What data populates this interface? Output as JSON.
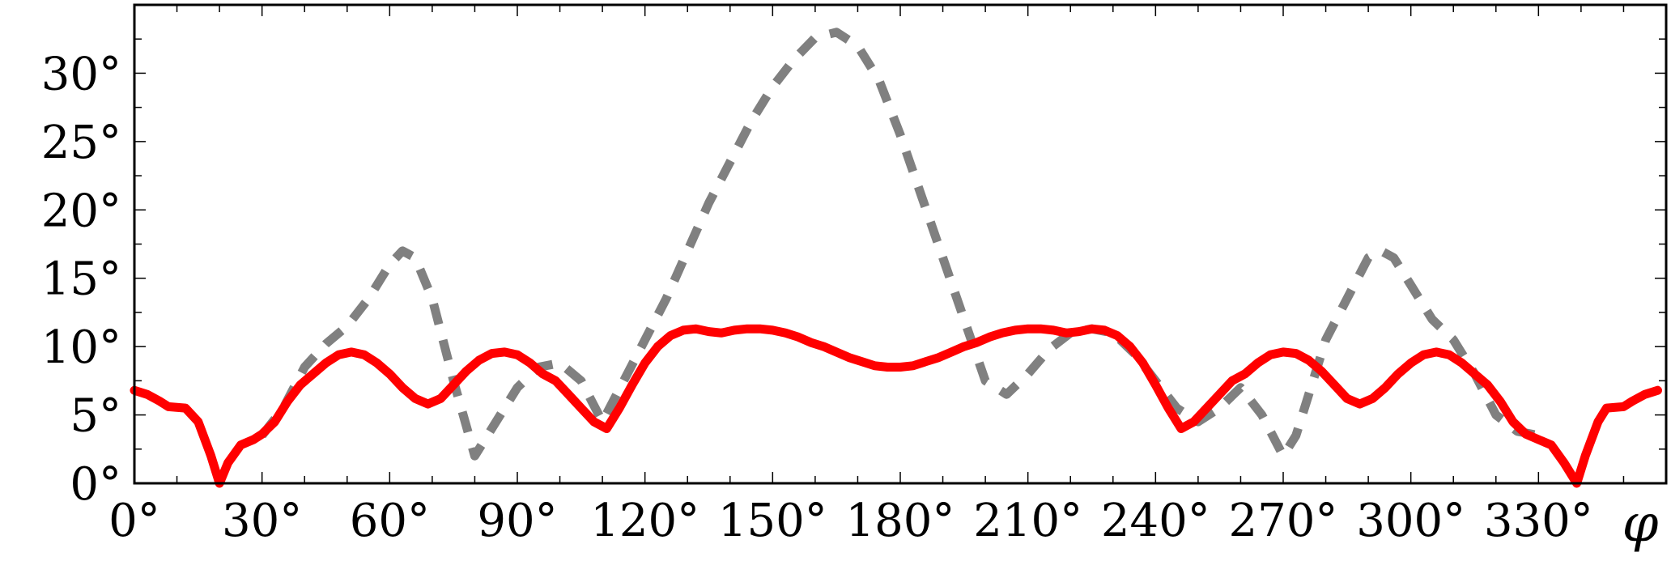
{
  "chart_data": {
    "type": "line",
    "title": "",
    "xlabel": "φ",
    "ylabel": "",
    "xlim": [
      0,
      360
    ],
    "ylim": [
      0,
      35
    ],
    "grid": false,
    "x_ticks": [
      0,
      30,
      60,
      90,
      120,
      150,
      180,
      210,
      240,
      270,
      300,
      330
    ],
    "x_tick_labels": [
      "0°",
      "30°",
      "60°",
      "90°",
      "120°",
      "150°",
      "180°",
      "210°",
      "240°",
      "270°",
      "300°",
      "330°"
    ],
    "y_ticks": [
      0,
      5,
      10,
      15,
      20,
      25,
      30
    ],
    "y_tick_labels": [
      "0°",
      "5°",
      "10°",
      "15°",
      "20°",
      "25°",
      "30°"
    ],
    "series": [
      {
        "style": "dashed",
        "color": "#808080",
        "points": [
          [
            30,
            3.5
          ],
          [
            35,
            5.5
          ],
          [
            40,
            8.5
          ],
          [
            45,
            10.2
          ],
          [
            50,
            11.5
          ],
          [
            55,
            13.5
          ],
          [
            60,
            16.0
          ],
          [
            63,
            17.0
          ],
          [
            66,
            16.5
          ],
          [
            70,
            13.5
          ],
          [
            75,
            7.5
          ],
          [
            80,
            2.0
          ],
          [
            83,
            3.5
          ],
          [
            87,
            5.5
          ],
          [
            90,
            7.0
          ],
          [
            95,
            8.5
          ],
          [
            100,
            8.8
          ],
          [
            105,
            7.5
          ],
          [
            110,
            4.5
          ],
          [
            115,
            7.5
          ],
          [
            120,
            10.5
          ],
          [
            125,
            13.5
          ],
          [
            130,
            17.0
          ],
          [
            135,
            20.5
          ],
          [
            140,
            23.5
          ],
          [
            145,
            26.5
          ],
          [
            150,
            29.0
          ],
          [
            155,
            31.0
          ],
          [
            160,
            32.6
          ],
          [
            165,
            33.0
          ],
          [
            170,
            32.0
          ],
          [
            175,
            29.5
          ],
          [
            180,
            25.5
          ],
          [
            185,
            21.0
          ],
          [
            190,
            16.5
          ],
          [
            195,
            12.0
          ],
          [
            200,
            7.5
          ],
          [
            205,
            6.5
          ],
          [
            210,
            8.0
          ],
          [
            215,
            9.8
          ],
          [
            220,
            11.0
          ],
          [
            225,
            11.3
          ],
          [
            230,
            11.0
          ],
          [
            235,
            9.5
          ],
          [
            240,
            7.5
          ],
          [
            245,
            5.5
          ],
          [
            250,
            4.5
          ],
          [
            255,
            5.5
          ],
          [
            260,
            7.0
          ],
          [
            265,
            5.0
          ],
          [
            270,
            2.0
          ],
          [
            273,
            3.5
          ],
          [
            277,
            7.5
          ],
          [
            280,
            10.5
          ],
          [
            285,
            13.5
          ],
          [
            290,
            16.5
          ],
          [
            293,
            17.0
          ],
          [
            296,
            16.5
          ],
          [
            300,
            14.5
          ],
          [
            305,
            12.0
          ],
          [
            310,
            10.5
          ],
          [
            315,
            8.0
          ],
          [
            320,
            5.0
          ],
          [
            325,
            3.8
          ],
          [
            330,
            3.5
          ]
        ]
      },
      {
        "style": "solid",
        "color": "#ff0000",
        "points": [
          [
            0,
            6.8
          ],
          [
            3,
            6.5
          ],
          [
            6,
            6.0
          ],
          [
            8,
            5.6
          ],
          [
            12,
            5.5
          ],
          [
            15,
            4.5
          ],
          [
            18,
            2.0
          ],
          [
            20,
            0.0
          ],
          [
            22,
            1.5
          ],
          [
            25,
            2.8
          ],
          [
            28,
            3.2
          ],
          [
            30,
            3.6
          ],
          [
            33,
            4.5
          ],
          [
            36,
            6.0
          ],
          [
            39,
            7.2
          ],
          [
            42,
            8.0
          ],
          [
            45,
            8.8
          ],
          [
            48,
            9.4
          ],
          [
            51,
            9.6
          ],
          [
            54,
            9.4
          ],
          [
            57,
            8.8
          ],
          [
            60,
            8.0
          ],
          [
            63,
            7.0
          ],
          [
            66,
            6.2
          ],
          [
            69,
            5.8
          ],
          [
            72,
            6.2
          ],
          [
            75,
            7.2
          ],
          [
            78,
            8.2
          ],
          [
            81,
            9.0
          ],
          [
            84,
            9.5
          ],
          [
            87,
            9.6
          ],
          [
            90,
            9.4
          ],
          [
            93,
            8.8
          ],
          [
            96,
            8.0
          ],
          [
            99,
            7.5
          ],
          [
            102,
            6.5
          ],
          [
            105,
            5.5
          ],
          [
            108,
            4.5
          ],
          [
            111,
            4.0
          ],
          [
            114,
            5.5
          ],
          [
            117,
            7.2
          ],
          [
            120,
            8.8
          ],
          [
            123,
            10.0
          ],
          [
            126,
            10.8
          ],
          [
            129,
            11.2
          ],
          [
            132,
            11.3
          ],
          [
            135,
            11.1
          ],
          [
            138,
            11.0
          ],
          [
            141,
            11.2
          ],
          [
            144,
            11.3
          ],
          [
            147,
            11.3
          ],
          [
            150,
            11.2
          ],
          [
            153,
            11.0
          ],
          [
            156,
            10.7
          ],
          [
            159,
            10.3
          ],
          [
            162,
            10.0
          ],
          [
            165,
            9.6
          ],
          [
            168,
            9.2
          ],
          [
            171,
            8.9
          ],
          [
            174,
            8.6
          ],
          [
            177,
            8.5
          ],
          [
            180,
            8.5
          ],
          [
            183,
            8.6
          ],
          [
            186,
            8.9
          ],
          [
            189,
            9.2
          ],
          [
            192,
            9.6
          ],
          [
            195,
            10.0
          ],
          [
            198,
            10.3
          ],
          [
            201,
            10.7
          ],
          [
            204,
            11.0
          ],
          [
            207,
            11.2
          ],
          [
            210,
            11.3
          ],
          [
            213,
            11.3
          ],
          [
            216,
            11.2
          ],
          [
            219,
            11.0
          ],
          [
            222,
            11.1
          ],
          [
            225,
            11.3
          ],
          [
            228,
            11.2
          ],
          [
            231,
            10.8
          ],
          [
            234,
            10.0
          ],
          [
            237,
            8.8
          ],
          [
            240,
            7.2
          ],
          [
            243,
            5.5
          ],
          [
            246,
            4.0
          ],
          [
            249,
            4.5
          ],
          [
            252,
            5.5
          ],
          [
            255,
            6.5
          ],
          [
            258,
            7.5
          ],
          [
            261,
            8.0
          ],
          [
            264,
            8.8
          ],
          [
            267,
            9.4
          ],
          [
            270,
            9.6
          ],
          [
            273,
            9.5
          ],
          [
            276,
            9.0
          ],
          [
            279,
            8.2
          ],
          [
            282,
            7.2
          ],
          [
            285,
            6.2
          ],
          [
            288,
            5.8
          ],
          [
            291,
            6.2
          ],
          [
            294,
            7.0
          ],
          [
            297,
            8.0
          ],
          [
            300,
            8.8
          ],
          [
            303,
            9.4
          ],
          [
            306,
            9.6
          ],
          [
            309,
            9.4
          ],
          [
            312,
            8.8
          ],
          [
            315,
            8.0
          ],
          [
            318,
            7.2
          ],
          [
            321,
            6.0
          ],
          [
            324,
            4.5
          ],
          [
            327,
            3.6
          ],
          [
            330,
            3.2
          ],
          [
            333,
            2.8
          ],
          [
            336,
            1.5
          ],
          [
            339,
            0.0
          ],
          [
            341,
            2.0
          ],
          [
            344,
            4.5
          ],
          [
            346,
            5.5
          ],
          [
            350,
            5.6
          ],
          [
            352,
            6.0
          ],
          [
            355,
            6.5
          ],
          [
            358,
            6.8
          ]
        ]
      }
    ]
  }
}
